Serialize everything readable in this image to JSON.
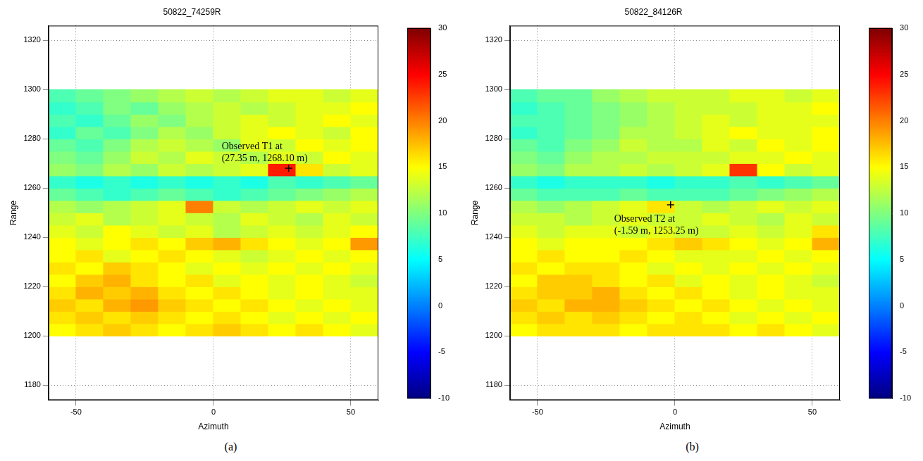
{
  "chart_data": [
    {
      "type": "heatmap",
      "title": "50822_74259R",
      "panel": "(a)",
      "x_label": "Azimuth",
      "y_label": "Range",
      "xlim": [
        -60,
        60
      ],
      "xticks": [
        -50,
        0,
        50
      ],
      "ylim": [
        1174,
        1326
      ],
      "yticks": [
        1180,
        1200,
        1220,
        1240,
        1260,
        1280,
        1300,
        1320
      ],
      "grid": true,
      "x": [
        -55,
        -45,
        -35,
        -25,
        -15,
        -5,
        5,
        15,
        25,
        35,
        45,
        55
      ],
      "y": [
        1202.5,
        1207.5,
        1212.5,
        1217.5,
        1222.5,
        1227.5,
        1232.5,
        1237.5,
        1242.5,
        1247.5,
        1252.5,
        1257.5,
        1262.5,
        1267.5,
        1272.5,
        1277.5,
        1282.5,
        1287.5,
        1292.5,
        1297.5
      ],
      "z": [
        [
          15,
          16,
          17,
          16,
          15,
          16,
          17,
          16,
          15,
          16,
          15,
          14
        ],
        [
          16,
          17,
          16,
          17,
          16,
          15,
          16,
          15,
          14,
          15,
          14,
          15
        ],
        [
          17,
          16,
          18,
          19,
          17,
          16,
          15,
          16,
          15,
          14,
          15,
          14
        ],
        [
          16,
          18,
          17,
          18,
          16,
          15,
          16,
          15,
          14,
          15,
          14,
          14
        ],
        [
          15,
          17,
          18,
          16,
          15,
          16,
          14,
          15,
          14,
          15,
          14,
          13
        ],
        [
          16,
          15,
          17,
          16,
          15,
          14,
          15,
          14,
          15,
          14,
          15,
          14
        ],
        [
          15,
          16,
          14,
          15,
          16,
          15,
          14,
          13,
          14,
          15,
          14,
          15
        ],
        [
          15,
          14,
          15,
          16,
          15,
          17,
          18,
          16,
          15,
          14,
          15,
          19
        ],
        [
          14,
          13,
          15,
          14,
          13,
          14,
          12,
          13,
          14,
          13,
          14,
          15
        ],
        [
          13,
          14,
          12,
          13,
          14,
          13,
          12,
          14,
          13,
          12,
          14,
          13
        ],
        [
          12,
          11,
          12,
          13,
          14,
          20,
          13,
          12,
          13,
          14,
          13,
          14
        ],
        [
          9,
          8,
          7,
          8,
          9,
          8,
          7,
          8,
          9,
          10,
          11,
          12
        ],
        [
          7,
          6,
          7,
          6,
          7,
          6,
          7,
          6,
          8,
          7,
          8,
          9
        ],
        [
          11,
          10,
          12,
          11,
          13,
          12,
          13,
          14,
          24,
          16,
          13,
          14
        ],
        [
          10,
          9,
          11,
          13,
          12,
          14,
          13,
          12,
          14,
          13,
          15,
          14
        ],
        [
          9,
          8,
          10,
          12,
          13,
          12,
          11,
          14,
          13,
          15,
          14,
          15
        ],
        [
          7,
          9,
          8,
          10,
          12,
          11,
          13,
          14,
          15,
          14,
          13,
          15
        ],
        [
          8,
          7,
          9,
          11,
          10,
          12,
          13,
          14,
          13,
          14,
          15,
          14
        ],
        [
          7,
          8,
          10,
          9,
          11,
          12,
          13,
          12,
          13,
          14,
          14,
          15
        ],
        [
          8,
          9,
          10,
          11,
          12,
          13,
          12,
          13,
          14,
          14,
          13,
          14
        ]
      ],
      "colorbar_range": [
        -10,
        30
      ],
      "colorbar_ticks": [
        -10,
        -5,
        0,
        5,
        10,
        15,
        20,
        25,
        30
      ],
      "annotations": [
        {
          "x": 27.35,
          "y": 1268.1,
          "marker": "+",
          "text": "Observed T1 at (27.35 m, 1268.10 m)"
        }
      ]
    },
    {
      "type": "heatmap",
      "title": "50822_84126R",
      "panel": "(b)",
      "x_label": "Azimuth",
      "y_label": "Range",
      "xlim": [
        -60,
        60
      ],
      "xticks": [
        -50,
        0,
        50
      ],
      "ylim": [
        1174,
        1326
      ],
      "yticks": [
        1180,
        1200,
        1220,
        1240,
        1260,
        1280,
        1300,
        1320
      ],
      "grid": true,
      "x": [
        -55,
        -45,
        -35,
        -25,
        -15,
        -5,
        5,
        15,
        25,
        35,
        45,
        55
      ],
      "y": [
        1202.5,
        1207.5,
        1212.5,
        1217.5,
        1222.5,
        1227.5,
        1232.5,
        1237.5,
        1242.5,
        1247.5,
        1252.5,
        1257.5,
        1262.5,
        1267.5,
        1272.5,
        1277.5,
        1282.5,
        1287.5,
        1292.5,
        1297.5
      ],
      "z": [
        [
          15,
          16,
          16,
          16,
          15,
          16,
          16,
          16,
          15,
          16,
          15,
          14
        ],
        [
          16,
          17,
          16,
          17,
          16,
          15,
          16,
          15,
          14,
          15,
          14,
          15
        ],
        [
          17,
          16,
          18,
          18,
          17,
          16,
          15,
          16,
          15,
          14,
          15,
          14
        ],
        [
          16,
          17,
          17,
          18,
          16,
          15,
          16,
          15,
          14,
          15,
          14,
          14
        ],
        [
          15,
          17,
          17,
          16,
          15,
          16,
          14,
          15,
          14,
          15,
          14,
          13
        ],
        [
          16,
          15,
          16,
          16,
          15,
          14,
          15,
          14,
          15,
          14,
          15,
          14
        ],
        [
          15,
          16,
          15,
          15,
          16,
          15,
          14,
          14,
          14,
          15,
          14,
          15
        ],
        [
          15,
          14,
          15,
          15,
          15,
          16,
          17,
          16,
          15,
          14,
          15,
          18
        ],
        [
          14,
          13,
          14,
          14,
          13,
          14,
          13,
          13,
          14,
          13,
          14,
          16
        ],
        [
          13,
          13,
          12,
          13,
          14,
          13,
          13,
          14,
          13,
          12,
          14,
          13
        ],
        [
          12,
          11,
          12,
          13,
          14,
          16,
          13,
          12,
          13,
          14,
          13,
          14
        ],
        [
          9,
          8,
          8,
          8,
          9,
          8,
          8,
          8,
          9,
          10,
          11,
          12
        ],
        [
          7,
          6,
          7,
          7,
          7,
          6,
          7,
          7,
          8,
          7,
          8,
          9
        ],
        [
          11,
          10,
          12,
          12,
          13,
          12,
          13,
          14,
          23,
          15,
          13,
          14
        ],
        [
          10,
          9,
          11,
          12,
          12,
          13,
          13,
          13,
          14,
          14,
          15,
          14
        ],
        [
          9,
          8,
          10,
          11,
          13,
          12,
          12,
          14,
          13,
          15,
          14,
          15
        ],
        [
          7,
          8,
          9,
          10,
          12,
          12,
          13,
          14,
          15,
          14,
          14,
          15
        ],
        [
          8,
          8,
          9,
          10,
          11,
          12,
          13,
          14,
          13,
          14,
          14,
          14
        ],
        [
          7,
          8,
          9,
          10,
          11,
          12,
          13,
          13,
          13,
          14,
          14,
          15
        ],
        [
          8,
          9,
          9,
          11,
          12,
          13,
          13,
          13,
          14,
          14,
          13,
          14
        ]
      ],
      "colorbar_range": [
        -10,
        30
      ],
      "colorbar_ticks": [
        -10,
        -5,
        0,
        5,
        10,
        15,
        20,
        25,
        30
      ],
      "annotations": [
        {
          "x": -1.59,
          "y": 1253.25,
          "marker": "+",
          "text": "Observed T2 at (-1.59 m, 1253.25 m)"
        }
      ]
    }
  ]
}
